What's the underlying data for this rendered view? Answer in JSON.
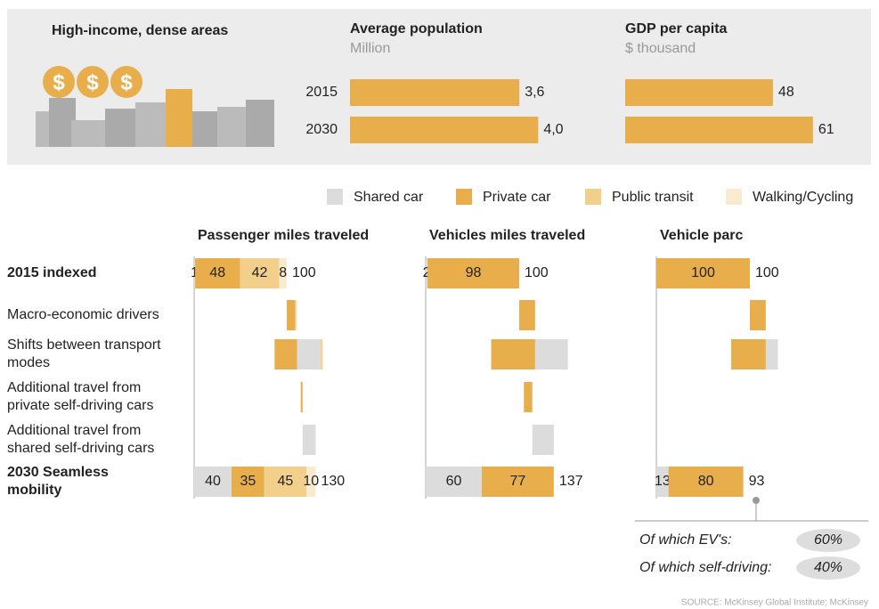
{
  "header": {
    "title": "High-income, dense areas"
  },
  "legend": [
    {
      "name": "Shared car",
      "color": "#dcdcdc"
    },
    {
      "name": "Private car",
      "color": "#e8ae4b"
    },
    {
      "name": "Public transit",
      "color": "#f3cf8c"
    },
    {
      "name": "Walking/Cycling",
      "color": "#faebd0"
    }
  ],
  "rows": [
    "2015 indexed",
    "Macro-economic drivers",
    "Shifts between transport modes",
    "Additional travel from private self-driving cars",
    "Additional travel from shared self-driving cars",
    "2030 Seamless mobility"
  ],
  "chart_data": [
    {
      "type": "hbar",
      "title": "Average population",
      "subtitle": "Million",
      "categories": [
        "2015",
        "2030"
      ],
      "values": [
        3.6,
        4.0
      ],
      "value_labels": [
        "3,6",
        "4,0"
      ],
      "color": "#e8ae4b",
      "xlim": [
        0,
        5.3
      ]
    },
    {
      "type": "hbar",
      "title": "GDP per capita",
      "subtitle": "$ thousand",
      "values": [
        48,
        61
      ],
      "color": "#e8ae4b",
      "xlim": [
        0,
        81
      ]
    },
    {
      "type": "waterfall",
      "title": "Passenger miles traveled",
      "xlim": [
        0,
        200
      ],
      "values": [
        [
          1,
          48,
          42,
          8
        ],
        [
          0,
          9,
          1,
          1
        ],
        [
          25,
          -24,
          2,
          1
        ],
        [
          0,
          2,
          0,
          0
        ],
        [
          14,
          0,
          0,
          0
        ],
        [
          40,
          35,
          45,
          10
        ]
      ],
      "totals": [
        100,
        null,
        null,
        null,
        null,
        130
      ]
    },
    {
      "type": "waterfall",
      "title": "Vehicles miles traveled",
      "xlim": [
        0,
        200
      ],
      "values": [
        [
          2,
          98,
          0,
          0
        ],
        [
          0,
          17,
          0,
          0
        ],
        [
          35,
          -47,
          0,
          0
        ],
        [
          0,
          9,
          0,
          0
        ],
        [
          23,
          0,
          0,
          0
        ],
        [
          60,
          77,
          0,
          0
        ]
      ],
      "totals": [
        100,
        null,
        null,
        null,
        null,
        137
      ]
    },
    {
      "type": "waterfall",
      "title": "Vehicle parc",
      "xlim": [
        0,
        200
      ],
      "values": [
        [
          0,
          100,
          0,
          0
        ],
        [
          0,
          17,
          0,
          0
        ],
        [
          13,
          -37,
          0,
          0
        ],
        [
          0,
          0,
          0,
          0
        ],
        [
          0,
          0,
          0,
          0
        ],
        [
          13,
          80,
          0,
          0
        ]
      ],
      "totals": [
        100,
        null,
        null,
        null,
        null,
        93
      ]
    }
  ],
  "notes": [
    {
      "text": "Of which EV's:",
      "share": "60%"
    },
    {
      "text": "Of which self-driving:",
      "share": "40%"
    }
  ],
  "source": "SOURCE: McKinsey Global Institute; McKinsey"
}
